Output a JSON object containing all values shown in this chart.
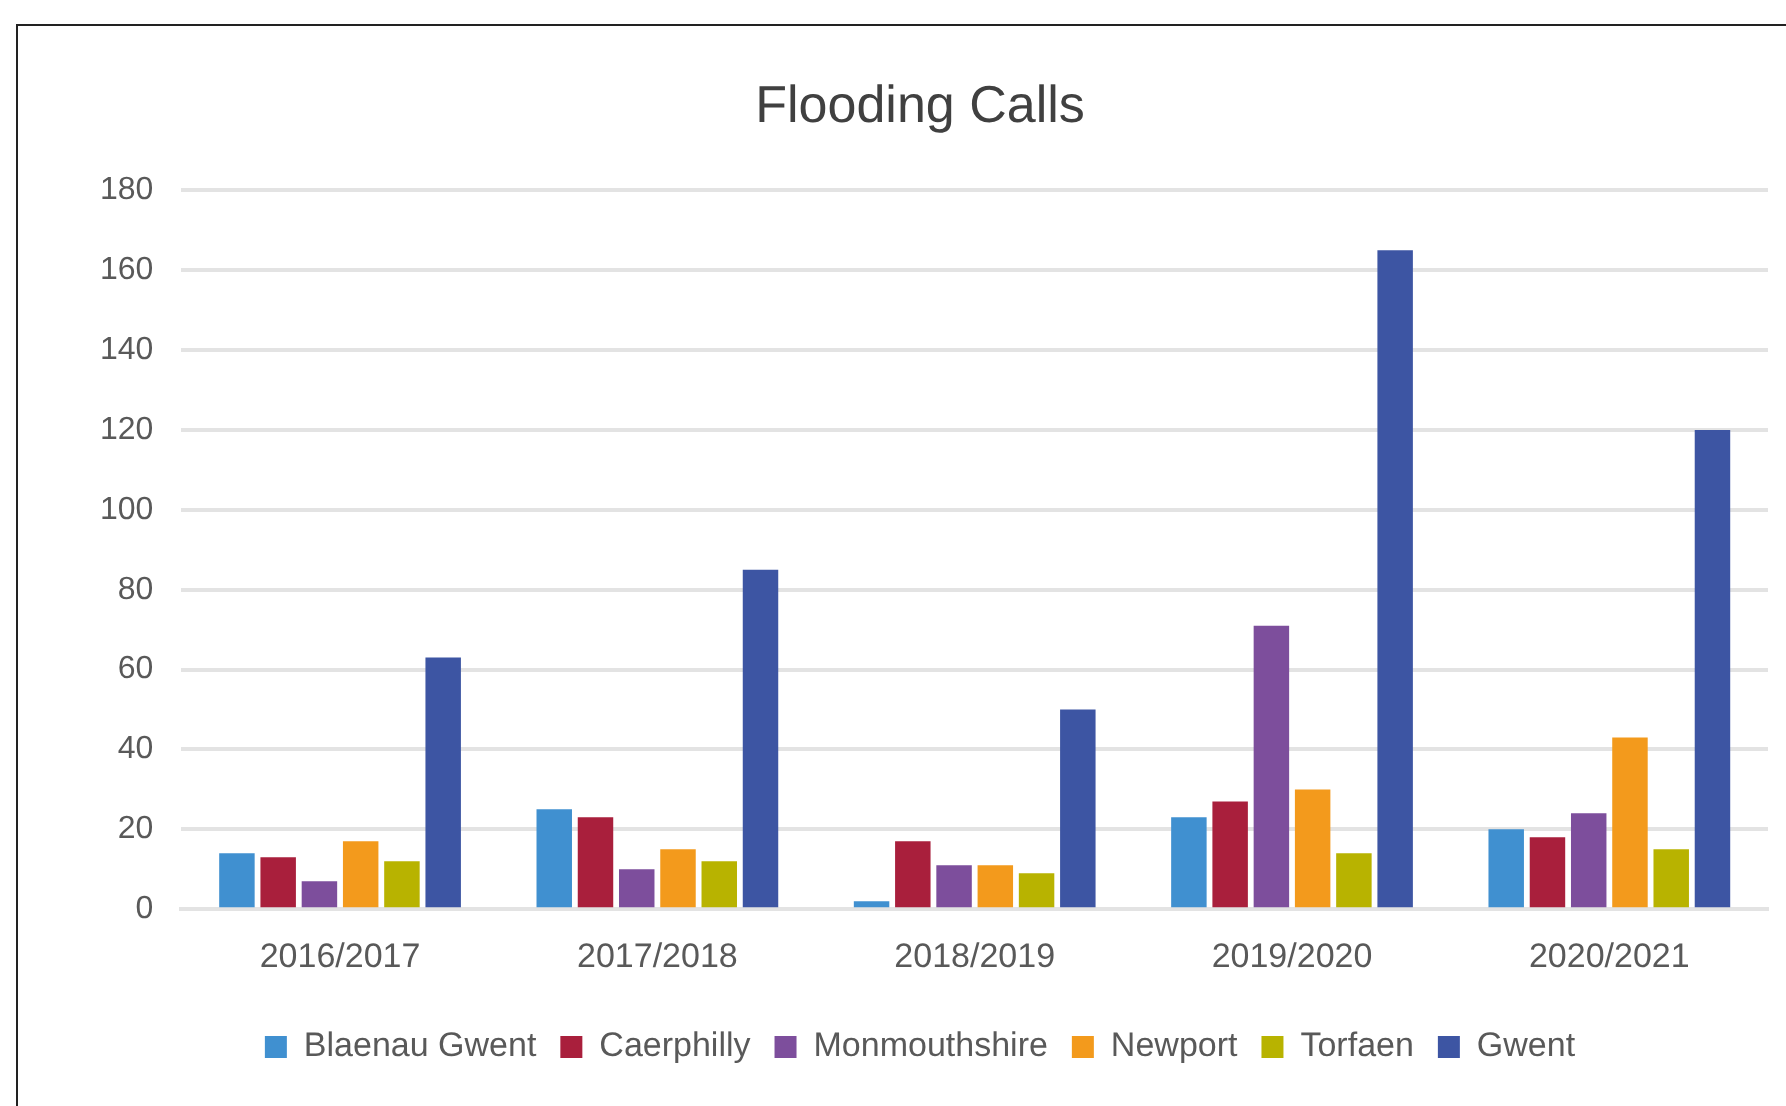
{
  "chart_data": {
    "type": "bar",
    "title": "Flooding Calls",
    "categories": [
      "2016/2017",
      "2017/2018",
      "2018/2019",
      "2019/2020",
      "2020/2021"
    ],
    "series": [
      {
        "name": "Blaenau Gwent",
        "color": "#4090d0",
        "values": [
          14,
          25,
          2,
          23,
          20
        ]
      },
      {
        "name": "Caerphilly",
        "color": "#a91f3c",
        "values": [
          13,
          23,
          17,
          27,
          18
        ]
      },
      {
        "name": "Monmouthshire",
        "color": "#7d4e9c",
        "values": [
          7,
          10,
          11,
          71,
          24
        ]
      },
      {
        "name": "Newport",
        "color": "#f39a1c",
        "values": [
          17,
          15,
          11,
          30,
          43
        ]
      },
      {
        "name": "Torfaen",
        "color": "#b8b300",
        "values": [
          12,
          12,
          9,
          14,
          15
        ]
      },
      {
        "name": "Gwent",
        "color": "#3d55a3",
        "values": [
          63,
          85,
          50,
          165,
          120
        ]
      }
    ],
    "ylim": [
      0,
      180
    ],
    "yticks": [
      0,
      20,
      40,
      60,
      80,
      100,
      120,
      140,
      160,
      180
    ],
    "grid": "y",
    "legend": "bottom"
  }
}
